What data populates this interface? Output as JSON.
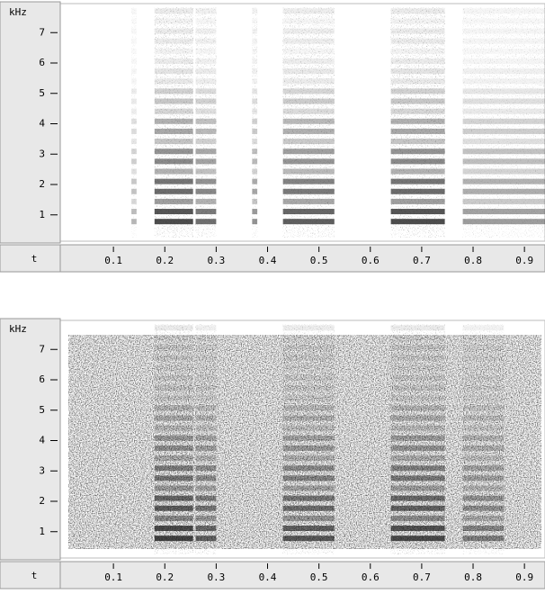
{
  "chart_data": [
    {
      "type": "spectrogram",
      "ylabel": "kHz",
      "xlabel": "t",
      "ylim": [
        0,
        8
      ],
      "yticks": [
        1,
        2,
        3,
        4,
        5,
        6,
        7
      ],
      "xlim": [
        0,
        0.94
      ],
      "xticks": [
        0.1,
        0.2,
        0.3,
        0.4,
        0.5,
        0.6,
        0.7,
        0.8,
        0.9
      ]
    },
    {
      "type": "spectrogram",
      "ylabel": "kHz",
      "xlabel": "t",
      "ylim": [
        0,
        8
      ],
      "yticks": [
        1,
        2,
        3,
        4,
        5,
        6,
        7
      ],
      "xlim": [
        0,
        0.94
      ],
      "xticks": [
        0.1,
        0.2,
        0.3,
        0.4,
        0.5,
        0.6,
        0.7,
        0.8,
        0.9
      ]
    }
  ]
}
